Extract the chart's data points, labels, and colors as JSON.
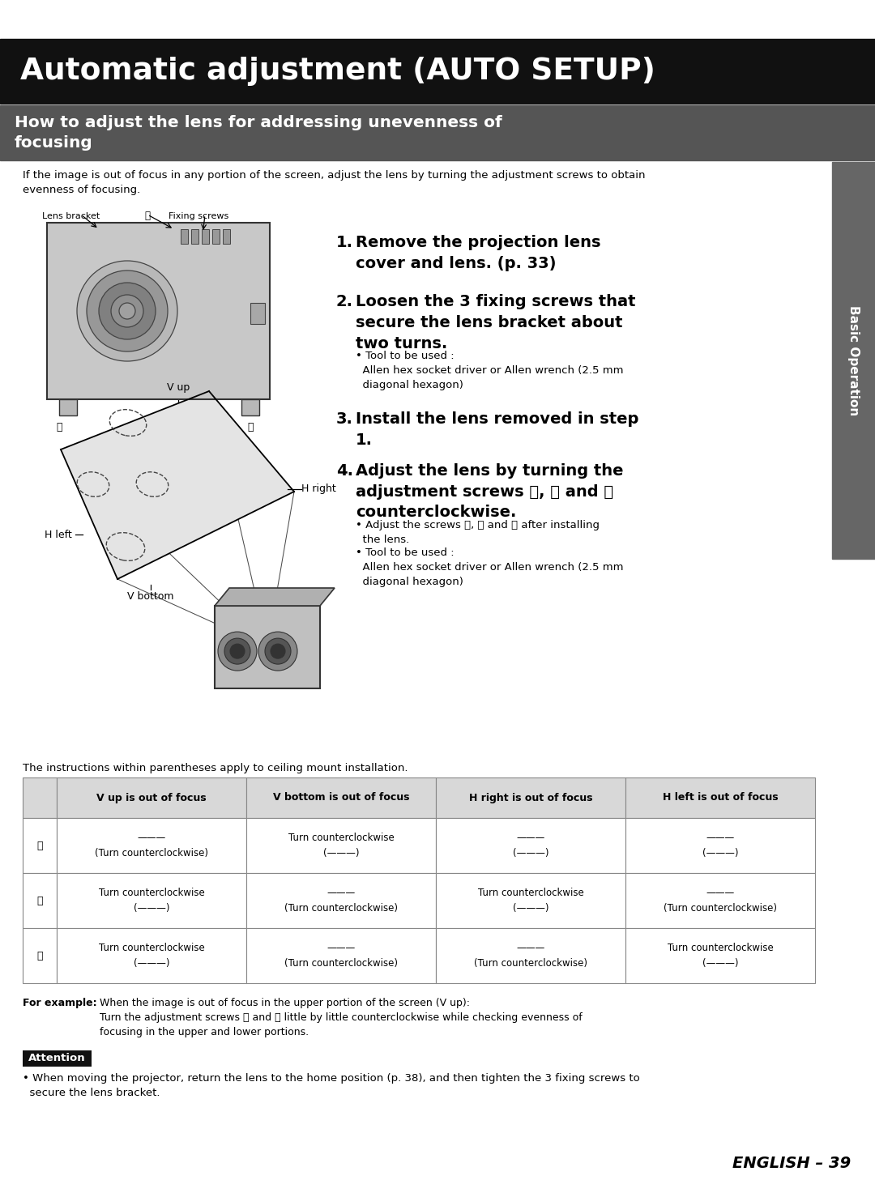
{
  "title1": "Automatic adjustment (AUTO SETUP)",
  "title2": "How to adjust the lens for addressing unevenness of\nfocusing",
  "intro_text": "If the image is out of focus in any portion of the screen, adjust the lens by turning the adjustment screws to obtain\nevenness of focusing.",
  "step1_bold": "Remove the projection lens\ncover and lens. (p. 33)",
  "step2_bold": "Loosen the 3 fixing screws that\nsecure the lens bracket about\ntwo turns.",
  "step2_bullet": "• Tool to be used :\n  Allen hex socket driver or Allen wrench (2.5 mm\n  diagonal hexagon)",
  "step3_bold": "Install the lens removed in step\n1.",
  "step4_bold": "Adjust the lens by turning the\nadjustment screws ⓐ, ⓑ and ⓒ\ncounterclockwise.",
  "step4_b1": "• Adjust the screws ⓐ, ⓑ and ⓒ after installing\n  the lens.",
  "step4_b2": "• Tool to be used :\n  Allen hex socket driver or Allen wrench (2.5 mm\n  diagonal hexagon)",
  "ceiling_note": "The instructions within parentheses apply to ceiling mount installation.",
  "table_headers": [
    "",
    "V up is out of focus",
    "V bottom is out of focus",
    "H right is out of focus",
    "H left is out of focus"
  ],
  "row_labels": [
    "ⓐ",
    "ⓑ",
    "ⓒ"
  ],
  "table_cells": [
    [
      "",
      "———\n(Turn counterclockwise)",
      "Turn counterclockwise\n(———)",
      "———\n(———)",
      "———\n(———)"
    ],
    [
      "",
      "Turn counterclockwise\n(———)",
      "———\n(Turn counterclockwise)",
      "Turn counterclockwise\n(———)",
      "———\n(Turn counterclockwise)"
    ],
    [
      "",
      "Turn counterclockwise\n(———)",
      "———\n(Turn counterclockwise)",
      "———\n(Turn counterclockwise)",
      "Turn counterclockwise\n(———)"
    ]
  ],
  "for_example_label": "For example:",
  "for_example_text": "When the image is out of focus in the upper portion of the screen (V up):\nTurn the adjustment screws ⓑ and ⓒ little by little counterclockwise while checking evenness of\nfocusing in the upper and lower portions.",
  "attention_title": "Attention",
  "attention_text": "• When moving the projector, return the lens to the home position (p. 38), and then tighten the 3 fixing screws to\n  secure the lens bracket.",
  "page_number": "ENGLISH – 39",
  "sidebar_text": "Basic Operation",
  "bg_color": "#ffffff",
  "title1_bg": "#111111",
  "title1_fg": "#ffffff",
  "title2_bg": "#555555",
  "title2_fg": "#ffffff",
  "sidebar_bg": "#666666",
  "sidebar_fg": "#ffffff",
  "table_hdr_bg": "#d8d8d8",
  "attention_bg": "#111111",
  "attention_fg": "#ffffff"
}
